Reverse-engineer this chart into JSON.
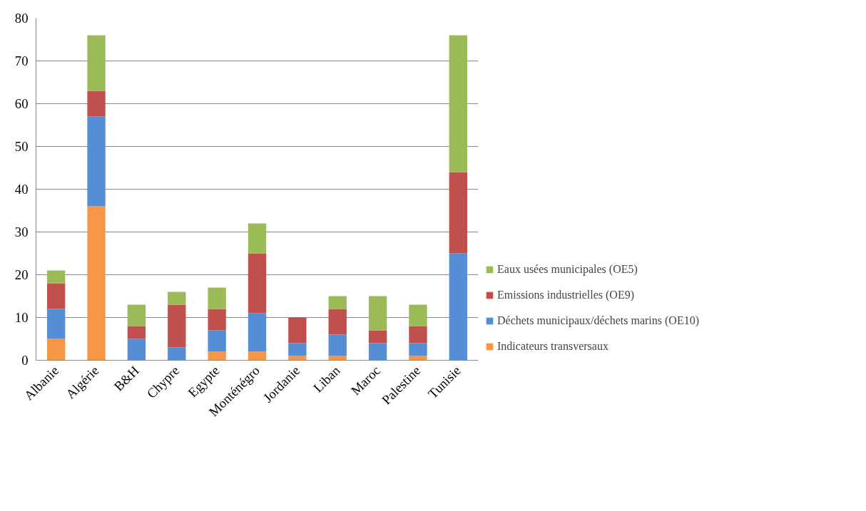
{
  "chart_data": {
    "type": "bar",
    "stacked": true,
    "categories": [
      "Albanie",
      "Algérie",
      "B&H",
      "Chypre",
      "Egypte",
      "Monténégro",
      "Jordanie",
      "Liban",
      "Maroc",
      "Palestine",
      "Tunisie"
    ],
    "series": [
      {
        "name": "Indicateurs transversaux",
        "color": "#f79646",
        "values": [
          5,
          36,
          0,
          0,
          2,
          2,
          1,
          1,
          0,
          1,
          0
        ]
      },
      {
        "name": "Déchets municipaux/déchets marins (OE10)",
        "color": "#558ed5",
        "values": [
          7,
          21,
          5,
          3,
          5,
          9,
          3,
          5,
          4,
          3,
          25
        ]
      },
      {
        "name": "Emissions industrielles (OE9)",
        "color": "#c0504d",
        "values": [
          6,
          6,
          3,
          10,
          5,
          14,
          6,
          6,
          3,
          4,
          19
        ]
      },
      {
        "name": "Eaux usées municipales (OE5)",
        "color": "#9bbb59",
        "values": [
          3,
          13,
          5,
          3,
          5,
          7,
          0,
          3,
          8,
          5,
          32
        ]
      }
    ],
    "ylim": [
      0,
      80
    ],
    "yticks": [
      0,
      10,
      20,
      30,
      40,
      50,
      60,
      70,
      80
    ],
    "grid": "y",
    "legend": "right"
  }
}
